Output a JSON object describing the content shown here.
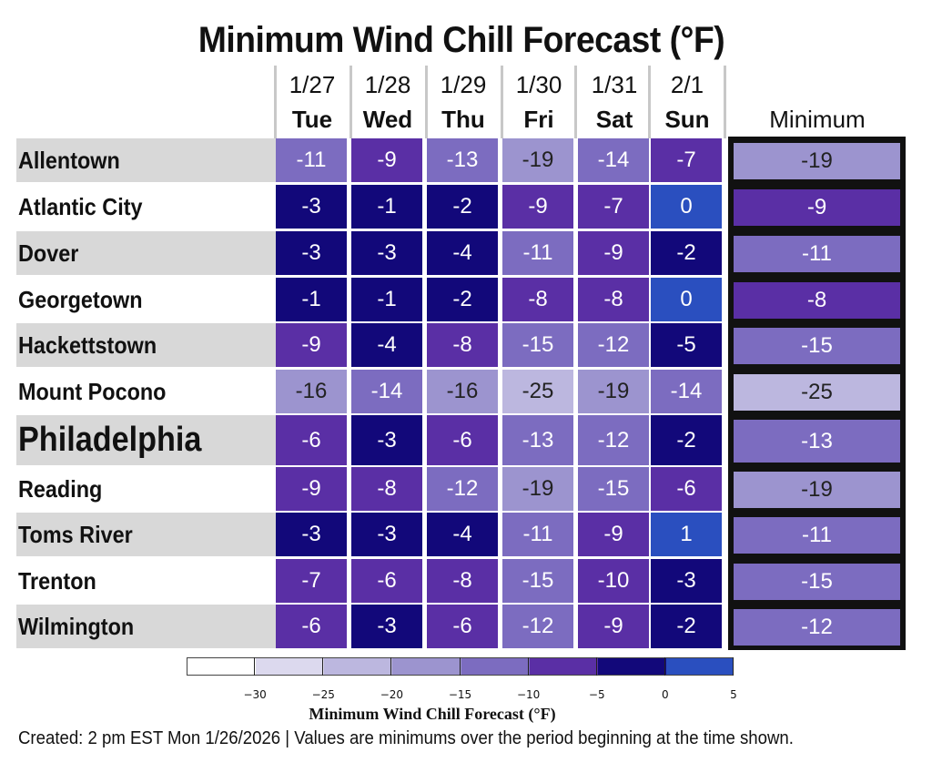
{
  "chart_data": {
    "type": "heatmap",
    "title": "Minimum Wind Chill Forecast (°F)",
    "columns": [
      {
        "date": "1/27",
        "day": "Tue"
      },
      {
        "date": "1/28",
        "day": "Wed"
      },
      {
        "date": "1/29",
        "day": "Thu"
      },
      {
        "date": "1/30",
        "day": "Fri"
      },
      {
        "date": "1/31",
        "day": "Sat"
      },
      {
        "date": "2/1",
        "day": "Sun"
      }
    ],
    "minimum_header": "Minimum",
    "rows": [
      {
        "city": "Allentown",
        "values": [
          -11,
          -9,
          -13,
          -19,
          -14,
          -7
        ],
        "minimum": -19
      },
      {
        "city": "Atlantic City",
        "values": [
          -3,
          -1,
          -2,
          -9,
          -7,
          0
        ],
        "minimum": -9
      },
      {
        "city": "Dover",
        "values": [
          -3,
          -3,
          -4,
          -11,
          -9,
          -2
        ],
        "minimum": -11
      },
      {
        "city": "Georgetown",
        "values": [
          -1,
          -1,
          -2,
          -8,
          -8,
          0
        ],
        "minimum": -8
      },
      {
        "city": "Hackettstown",
        "values": [
          -9,
          -4,
          -8,
          -15,
          -12,
          -5
        ],
        "minimum": -15
      },
      {
        "city": "Mount Pocono",
        "values": [
          -16,
          -14,
          -16,
          -25,
          -19,
          -14
        ],
        "minimum": -25
      },
      {
        "city": "Philadelphia",
        "values": [
          -6,
          -3,
          -6,
          -13,
          -12,
          -2
        ],
        "minimum": -13,
        "emphasized": true
      },
      {
        "city": "Reading",
        "values": [
          -9,
          -8,
          -12,
          -19,
          -15,
          -6
        ],
        "minimum": -19
      },
      {
        "city": "Toms River",
        "values": [
          -3,
          -3,
          -4,
          -11,
          -9,
          1
        ],
        "minimum": -11
      },
      {
        "city": "Trenton",
        "values": [
          -7,
          -6,
          -8,
          -15,
          -10,
          -3
        ],
        "minimum": -15
      },
      {
        "city": "Wilmington",
        "values": [
          -6,
          -3,
          -6,
          -12,
          -9,
          -2
        ],
        "minimum": -12
      }
    ],
    "colorbar": {
      "title": "Minimum Wind Chill Forecast (°F)",
      "ticks": [
        -30,
        -25,
        -20,
        -15,
        -10,
        -5,
        0,
        5
      ],
      "tick_labels": [
        "−30",
        "−25",
        "−20",
        "−15",
        "−10",
        "−5",
        "0",
        "5"
      ],
      "bins": [
        {
          "from": -35,
          "to": -30,
          "color": "#ffffff"
        },
        {
          "from": -30,
          "to": -25,
          "color": "#dcd9ee"
        },
        {
          "from": -25,
          "to": -20,
          "color": "#bcb7df"
        },
        {
          "from": -20,
          "to": -15,
          "color": "#9c94cf"
        },
        {
          "from": -15,
          "to": -10,
          "color": "#7c6cc0"
        },
        {
          "from": -10,
          "to": -5,
          "color": "#5a2fa5"
        },
        {
          "from": -5,
          "to": 0,
          "color": "#12087a"
        },
        {
          "from": 0,
          "to": 5,
          "color": "#2a4fbf"
        }
      ]
    }
  },
  "footer": "Created: 2 pm EST Mon 1/26/2026  |  Values are minimums over the period beginning at the time shown."
}
